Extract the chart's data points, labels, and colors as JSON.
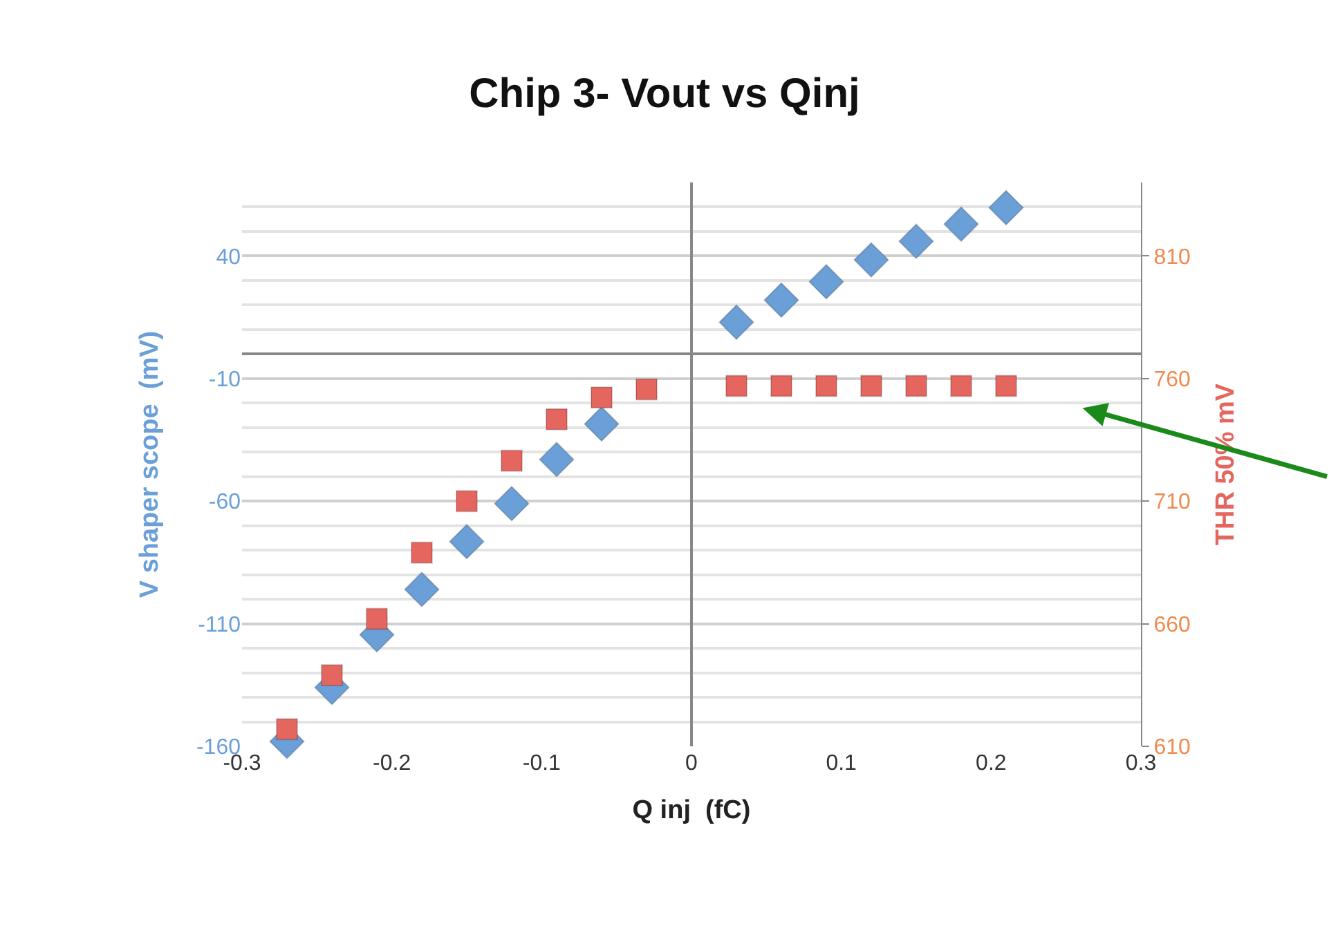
{
  "chart_data": {
    "type": "scatter",
    "title": "Chip 3- Vout vs Qinj",
    "xlabel": "Q inj  (fC)",
    "ylabel": "V shaper scope  (mV)",
    "y2label": "THR 50% mV",
    "x": [
      -0.27,
      -0.24,
      -0.21,
      -0.18,
      -0.15,
      -0.12,
      -0.09,
      -0.06,
      -0.03,
      0.03,
      0.06,
      0.09,
      0.12,
      0.15,
      0.18,
      0.21
    ],
    "series": [
      {
        "color": "#6a9fd8",
        "marker": "diamond",
        "values": [
          -158,
          -136,
          -114.5,
          -96,
          -76.5,
          -61,
          -43,
          -28.5,
          null,
          13,
          22,
          29.5,
          38.4,
          46,
          53,
          59.7
        ]
      },
      {
        "color": "#e4665e",
        "marker": "square",
        "axis": "y2",
        "values": [
          617,
          639,
          662,
          689,
          710,
          726.5,
          743.4,
          752.3,
          755.6,
          757,
          757,
          757,
          757,
          757,
          757,
          757
        ]
      }
    ],
    "xlim": [
      -0.3,
      0.3
    ],
    "xticks": [
      -0.3,
      -0.2,
      -0.1,
      0,
      0.1,
      0.2,
      0.3
    ],
    "ylim": [
      -160,
      70
    ],
    "yticks": [
      -160,
      -110,
      -60,
      -10,
      40
    ],
    "y2lim": [
      610,
      840
    ],
    "y2ticks": [
      610,
      660,
      710,
      760,
      810
    ],
    "grid": "y"
  }
}
